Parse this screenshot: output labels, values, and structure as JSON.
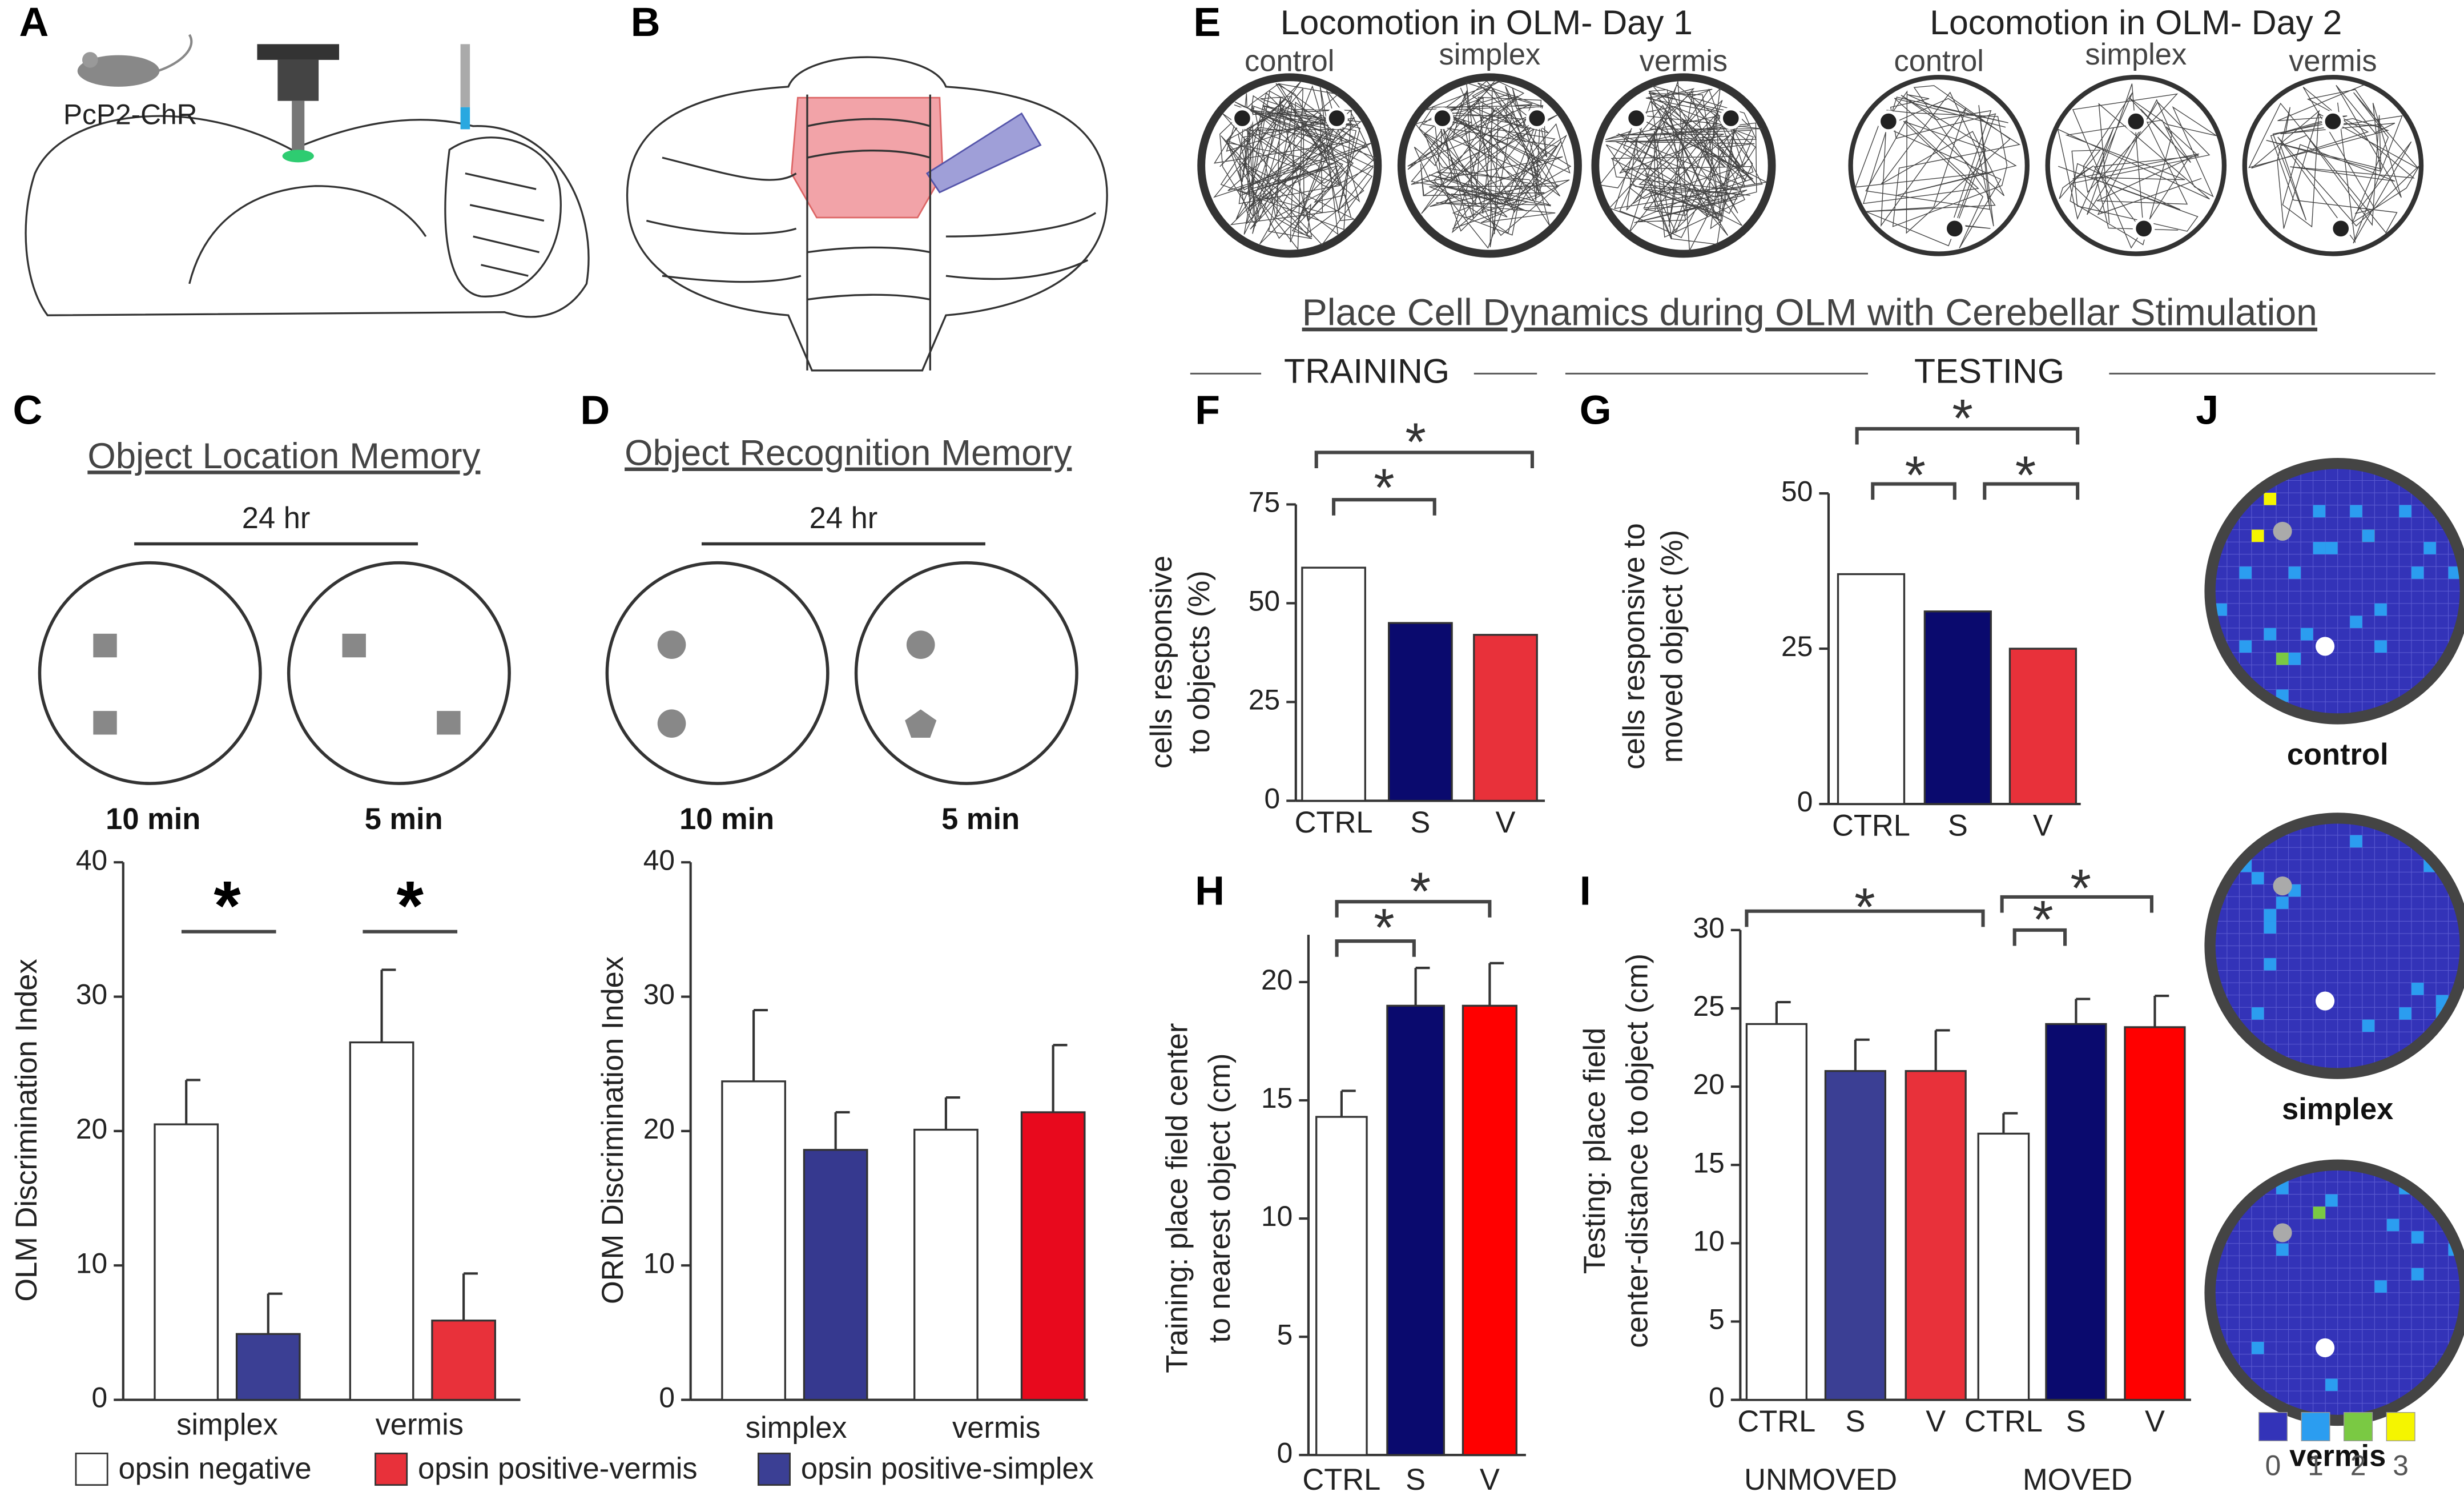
{
  "figure": {
    "panel_labels": [
      "A",
      "B",
      "C",
      "D",
      "E",
      "F",
      "G",
      "H",
      "I",
      "J"
    ],
    "a": {
      "label": "PcP2-ChR"
    },
    "c": {
      "title": "Object Location Memory",
      "delay": "24 hr",
      "times": [
        "10 min",
        "5 min"
      ]
    },
    "d": {
      "title": "Object Recognition Memory",
      "delay": "24 hr",
      "times": [
        "10 min",
        "5 min"
      ]
    },
    "e": {
      "days": [
        {
          "title": "Locomotion in OLM- Day 1",
          "arenas": [
            "control",
            "simplex",
            "vermis"
          ]
        },
        {
          "title": "Locomotion in OLM- Day 2",
          "arenas": [
            "control",
            "simplex",
            "vermis"
          ]
        }
      ]
    },
    "section": {
      "title": "Place Cell Dynamics during OLM with Cerebellar Stimulation",
      "training": "TRAINING",
      "testing": "TESTING"
    },
    "j": {
      "maps": [
        "control",
        "simplex",
        "vermis"
      ],
      "scale": [
        "0",
        "1",
        "2",
        "3"
      ],
      "scale_colors": [
        "#3333b8",
        "#2b9df0",
        "#7ac943",
        "#f5f500"
      ]
    }
  },
  "chart_data": [
    {
      "type": "bar",
      "ylabel": [
        "OLM Discrimination Index"
      ],
      "categories": [
        "simplex",
        "vermis"
      ],
      "series": [
        {
          "name": "opsin negative",
          "color": "#ffffff",
          "values": [
            20.5,
            26.6
          ],
          "errors": [
            3.3,
            5.4
          ]
        },
        {
          "name": "opsin positive-vermis",
          "color": "#e8313a",
          "values": [
            null,
            5.9
          ],
          "errors": [
            null,
            3.5
          ]
        },
        {
          "name": "opsin positive-simplex",
          "color": "#3b3f94",
          "values": [
            4.9,
            null
          ],
          "errors": [
            3.0,
            null
          ]
        }
      ],
      "ylim": [
        0,
        40
      ],
      "yticks": [
        0,
        10,
        20,
        30,
        40
      ],
      "annotations": [
        "*",
        "*"
      ]
    },
    {
      "type": "bar",
      "ylabel": [
        "ORM Discrimination Index"
      ],
      "categories": [
        "simplex",
        "vermis"
      ],
      "series": [
        {
          "color": "#ffffff",
          "values": [
            23.7,
            20.1
          ],
          "errors": [
            5.3,
            2.4
          ]
        },
        {
          "color": "#e8091d",
          "values": [
            null,
            21.4
          ],
          "errors": [
            null,
            5.0
          ]
        },
        {
          "color": "#36398f",
          "values": [
            18.6,
            null
          ],
          "errors": [
            2.8,
            null
          ]
        }
      ],
      "ylim": [
        0,
        40
      ],
      "yticks": [
        0,
        10,
        20,
        30,
        40
      ]
    },
    {
      "type": "bar",
      "ylabel": [
        "cells responsive",
        "to objects (%)"
      ],
      "categories": [
        "CTRL",
        "S",
        "V"
      ],
      "values": [
        59,
        45,
        42
      ],
      "colors": [
        "#ffffff",
        "#0a0a6e",
        "#e8313a"
      ],
      "ylim": [
        0,
        75
      ],
      "yticks": [
        0,
        25,
        50,
        75
      ],
      "annotations": [
        "*",
        "*"
      ]
    },
    {
      "type": "bar",
      "ylabel": [
        "cells responsive to",
        "moved object (%)"
      ],
      "categories": [
        "CTRL",
        "S",
        "V"
      ],
      "values": [
        37,
        31,
        25
      ],
      "colors": [
        "#ffffff",
        "#0a0a6e",
        "#e8313a"
      ],
      "ylim": [
        0,
        50
      ],
      "yticks": [
        0,
        25,
        50
      ],
      "annotations": [
        "*",
        "*",
        "*"
      ]
    },
    {
      "type": "bar",
      "ylabel": [
        "Training: place field center",
        "to nearest object (cm)"
      ],
      "categories": [
        "CTRL",
        "S",
        "V"
      ],
      "values": [
        14.3,
        19,
        19
      ],
      "errors": [
        1.1,
        1.6,
        1.8
      ],
      "colors": [
        "#ffffff",
        "#0a0a6e",
        "#ff0000"
      ],
      "ylim": [
        0,
        22
      ],
      "yticks": [
        0,
        5,
        10,
        15,
        20
      ],
      "annotations": [
        "*",
        "*"
      ]
    },
    {
      "type": "bar",
      "ylabel": [
        "Testing: place field",
        "center-distance to object (cm)"
      ],
      "categories": [
        "CTRL",
        "S",
        "V",
        "CTRL",
        "S",
        "V"
      ],
      "groups": [
        "UNMOVED",
        "MOVED"
      ],
      "values": [
        24,
        21,
        21,
        17,
        24,
        23.8
      ],
      "errors": [
        1.4,
        2.0,
        2.6,
        1.3,
        1.6,
        2.0
      ],
      "colors": [
        "#ffffff",
        "#3b3f94",
        "#e8313a",
        "#ffffff",
        "#0a0a6e",
        "#ff0000"
      ],
      "ylim": [
        0,
        30
      ],
      "yticks": [
        0,
        5,
        10,
        15,
        20,
        25,
        30
      ],
      "annotations": [
        "*",
        "*",
        "*"
      ]
    }
  ]
}
